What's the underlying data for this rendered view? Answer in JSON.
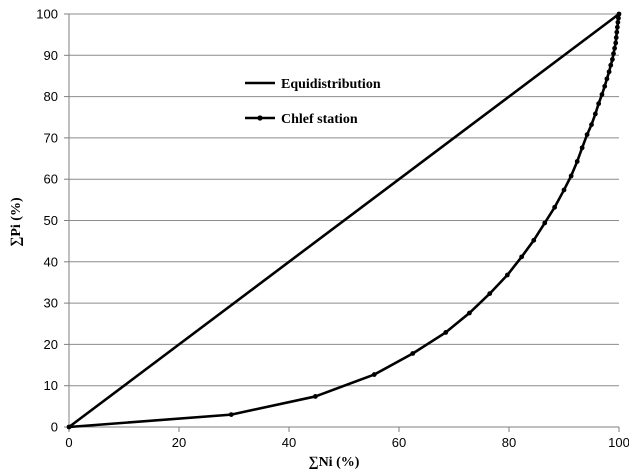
{
  "chart_data": {
    "type": "line",
    "title": "",
    "xlabel": "∑Ni (%)",
    "ylabel": "∑Pi (%)",
    "xlim": [
      0,
      100
    ],
    "ylim": [
      0,
      100
    ],
    "xticks": [
      0,
      20,
      40,
      60,
      80,
      100
    ],
    "yticks": [
      0,
      10,
      20,
      30,
      40,
      50,
      60,
      70,
      80,
      90,
      100
    ],
    "grid": "horizontal",
    "legend_position": "upper-left-inside",
    "series": [
      {
        "name": "Equidistribution",
        "color": "#000000",
        "markers": false,
        "points": [
          [
            0,
            0
          ],
          [
            100,
            100
          ]
        ]
      },
      {
        "name": "Chlef station",
        "color": "#000000",
        "markers": true,
        "points": [
          [
            0,
            0
          ],
          [
            29.5,
            3
          ],
          [
            44.8,
            7.4
          ],
          [
            55.5,
            12.7
          ],
          [
            62.5,
            17.8
          ],
          [
            68.5,
            22.9
          ],
          [
            72.8,
            27.6
          ],
          [
            76.5,
            32.3
          ],
          [
            79.7,
            36.8
          ],
          [
            82.3,
            41.2
          ],
          [
            84.5,
            45.2
          ],
          [
            86.5,
            49.4
          ],
          [
            88.3,
            53.2
          ],
          [
            90,
            57.4
          ],
          [
            91.3,
            60.8
          ],
          [
            92.4,
            64.3
          ],
          [
            93.3,
            67.6
          ],
          [
            94.2,
            70.8
          ],
          [
            95,
            73.2
          ],
          [
            95.7,
            75.8
          ],
          [
            96.3,
            78.3
          ],
          [
            96.9,
            80.5
          ],
          [
            97.4,
            82.5
          ],
          [
            97.8,
            84.3
          ],
          [
            98.2,
            86
          ],
          [
            98.5,
            87.6
          ],
          [
            98.8,
            89
          ],
          [
            99,
            90.4
          ],
          [
            99.2,
            91.7
          ],
          [
            99.4,
            93
          ],
          [
            99.5,
            94.3
          ],
          [
            99.6,
            95.6
          ],
          [
            99.7,
            96.8
          ],
          [
            99.8,
            98
          ],
          [
            99.9,
            99
          ],
          [
            100,
            100
          ]
        ]
      }
    ]
  }
}
